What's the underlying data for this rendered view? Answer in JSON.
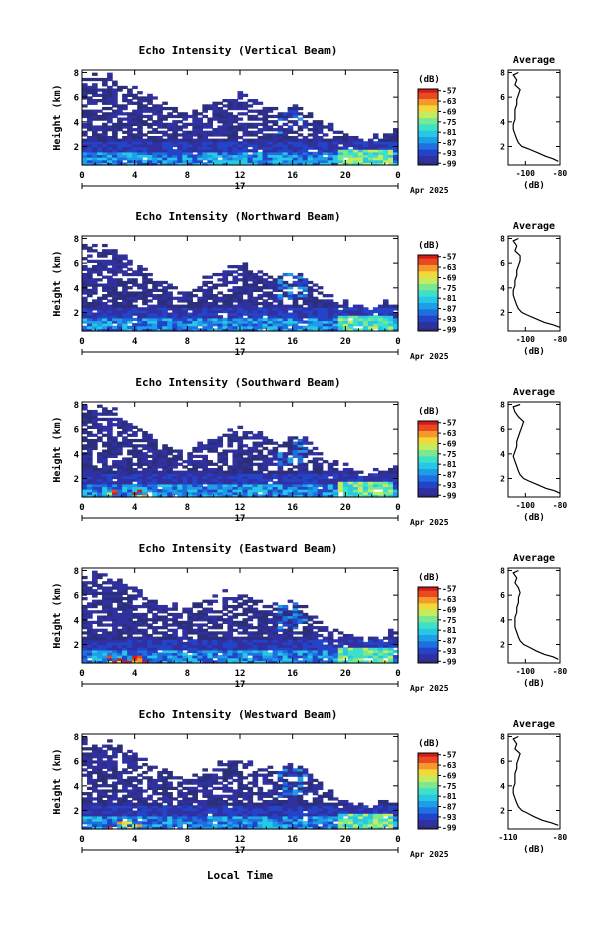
{
  "figure": {
    "xlabel": "Local Time",
    "date_label": "Apr 2025",
    "day_label": "17",
    "cbar_label": "(dB)",
    "avg_title": "Average",
    "avg_xlabel": "(dB)",
    "palette": [
      "#2b2f7a",
      "#3030a0",
      "#2344c8",
      "#1e6fe0",
      "#1f9ee8",
      "#27c7e6",
      "#3fe0c8",
      "#7ae890",
      "#c4ec5e",
      "#f2d83a",
      "#f59a2a",
      "#ea4a22",
      "#d21c1c"
    ]
  },
  "chart_data": [
    {
      "type": "heatmap",
      "title": "Echo Intensity (Vertical Beam)",
      "ylabel": "Height (km)",
      "x_ticks": [
        "0",
        "4",
        "8",
        "12",
        "16",
        "20",
        "0"
      ],
      "y_ticks": [
        "2",
        "4",
        "6",
        "8"
      ],
      "xlim": [
        0,
        24
      ],
      "ylim": [
        0.5,
        8.2
      ],
      "colorbar": {
        "ticks": [
          "-57",
          "-63",
          "-69",
          "-75",
          "-81",
          "-87",
          "-93",
          "-99"
        ],
        "range": [
          -100,
          -56
        ]
      },
      "echo_top_km": [
        7.8,
        7.6,
        7.9,
        7.2,
        6.8,
        6.2,
        5.6,
        5.2,
        4.8,
        5.1,
        5.6,
        6.0,
        6.3,
        5.8,
        5.3,
        5.0,
        5.6,
        5.5,
        4.2,
        3.6,
        3.0,
        2.8,
        2.6,
        3.2,
        3.4
      ],
      "average_profile": {
        "xlim": [
          -110,
          -80
        ],
        "x_ticks": [
          "-100",
          "-80"
        ],
        "y_ticks": [
          "2",
          "4",
          "6",
          "8"
        ],
        "height_km": [
          0.8,
          1.0,
          1.2,
          1.5,
          1.8,
          2.0,
          2.3,
          2.6,
          3.0,
          3.4,
          3.8,
          4.2,
          4.6,
          5.0,
          5.4,
          5.8,
          6.2,
          6.6,
          7.0,
          7.4,
          7.8,
          8.0
        ],
        "db": [
          -81,
          -84,
          -88,
          -93,
          -98,
          -102,
          -104,
          -105,
          -106,
          -107,
          -107,
          -106,
          -106,
          -106,
          -105,
          -105,
          -104,
          -103,
          -106,
          -105,
          -107,
          -104
        ]
      }
    },
    {
      "type": "heatmap",
      "title": "Echo Intensity (Northward Beam)",
      "ylabel": "Height (km)",
      "x_ticks": [
        "0",
        "4",
        "8",
        "12",
        "16",
        "20",
        "0"
      ],
      "y_ticks": [
        "2",
        "4",
        "6",
        "8"
      ],
      "xlim": [
        0,
        24
      ],
      "ylim": [
        0.5,
        8.2
      ],
      "colorbar": {
        "ticks": [
          "-57",
          "-63",
          "-69",
          "-75",
          "-81",
          "-87",
          "-93",
          "-99"
        ],
        "range": [
          -100,
          -56
        ]
      },
      "echo_top_km": [
        7.8,
        7.4,
        7.6,
        6.8,
        6.0,
        5.2,
        4.6,
        4.0,
        3.8,
        4.4,
        5.2,
        5.8,
        6.0,
        5.6,
        5.4,
        5.0,
        5.4,
        5.0,
        4.0,
        3.2,
        2.8,
        2.5,
        2.3,
        2.8,
        3.0
      ],
      "average_profile": {
        "xlim": [
          -110,
          -80
        ],
        "x_ticks": [
          "-100",
          "-80"
        ],
        "y_ticks": [
          "2",
          "4",
          "6",
          "8"
        ],
        "height_km": [
          0.8,
          1.0,
          1.2,
          1.5,
          1.8,
          2.0,
          2.3,
          2.6,
          3.0,
          3.4,
          3.8,
          4.2,
          4.6,
          5.0,
          5.4,
          5.8,
          6.2,
          6.6,
          7.0,
          7.4,
          7.8,
          8.0
        ],
        "db": [
          -80,
          -84,
          -89,
          -94,
          -99,
          -102,
          -104,
          -105,
          -106,
          -107,
          -107,
          -106,
          -106,
          -105,
          -105,
          -104,
          -103,
          -103,
          -106,
          -105,
          -107,
          -104
        ]
      }
    },
    {
      "type": "heatmap",
      "title": "Echo Intensity (Southward Beam)",
      "ylabel": "Height (km)",
      "x_ticks": [
        "0",
        "4",
        "8",
        "12",
        "16",
        "20",
        "0"
      ],
      "y_ticks": [
        "2",
        "4",
        "6",
        "8"
      ],
      "xlim": [
        0,
        24
      ],
      "ylim": [
        0.5,
        8.2
      ],
      "colorbar": {
        "ticks": [
          "-57",
          "-63",
          "-69",
          "-75",
          "-81",
          "-87",
          "-93",
          "-99"
        ],
        "range": [
          -100,
          -56
        ]
      },
      "echo_top_km": [
        7.8,
        7.7,
        7.8,
        7.0,
        6.4,
        5.8,
        5.0,
        4.6,
        4.2,
        4.8,
        5.4,
        5.9,
        6.1,
        5.7,
        5.4,
        5.2,
        5.6,
        5.4,
        4.2,
        3.4,
        3.0,
        2.6,
        2.4,
        3.0,
        3.2
      ],
      "average_profile": {
        "xlim": [
          -110,
          -80
        ],
        "x_ticks": [
          "-100",
          "-80"
        ],
        "y_ticks": [
          "2",
          "4",
          "6",
          "8"
        ],
        "height_km": [
          0.8,
          1.0,
          1.2,
          1.5,
          1.8,
          2.0,
          2.3,
          2.6,
          3.0,
          3.4,
          3.8,
          4.2,
          4.6,
          5.0,
          5.4,
          5.8,
          6.2,
          6.6,
          7.0,
          7.4,
          7.8,
          8.0
        ],
        "db": [
          -80,
          -83,
          -88,
          -93,
          -98,
          -101,
          -103,
          -104,
          -105,
          -106,
          -107,
          -106,
          -105,
          -105,
          -104,
          -103,
          -102,
          -101,
          -104,
          -106,
          -107,
          -103
        ]
      }
    },
    {
      "type": "heatmap",
      "title": "Echo Intensity (Eastward Beam)",
      "ylabel": "Height (km)",
      "x_ticks": [
        "0",
        "4",
        "8",
        "12",
        "16",
        "20",
        "0"
      ],
      "y_ticks": [
        "2",
        "4",
        "6",
        "8"
      ],
      "xlim": [
        0,
        24
      ],
      "ylim": [
        0.5,
        8.2
      ],
      "colorbar": {
        "ticks": [
          "-57",
          "-63",
          "-69",
          "-75",
          "-81",
          "-87",
          "-93",
          "-99"
        ],
        "range": [
          -100,
          -56
        ]
      },
      "echo_top_km": [
        7.8,
        7.8,
        7.6,
        7.0,
        6.6,
        6.0,
        5.4,
        5.2,
        5.0,
        5.4,
        5.8,
        6.2,
        6.0,
        5.6,
        5.4,
        5.2,
        5.6,
        5.2,
        4.0,
        3.4,
        3.0,
        2.7,
        2.5,
        3.0,
        3.2
      ],
      "average_profile": {
        "xlim": [
          -110,
          -80
        ],
        "x_ticks": [
          "-100",
          "-80"
        ],
        "y_ticks": [
          "2",
          "4",
          "6",
          "8"
        ],
        "height_km": [
          0.8,
          1.0,
          1.2,
          1.5,
          1.8,
          2.0,
          2.3,
          2.6,
          3.0,
          3.4,
          3.8,
          4.2,
          4.6,
          5.0,
          5.4,
          5.8,
          6.2,
          6.6,
          7.0,
          7.4,
          7.8,
          8.0
        ],
        "db": [
          -81,
          -84,
          -89,
          -94,
          -98,
          -101,
          -103,
          -104,
          -105,
          -106,
          -106,
          -106,
          -105,
          -105,
          -104,
          -104,
          -103,
          -104,
          -106,
          -105,
          -107,
          -104
        ]
      }
    },
    {
      "type": "heatmap",
      "title": "Echo Intensity (Westward Beam)",
      "ylabel": "Height (km)",
      "x_ticks": [
        "0",
        "4",
        "8",
        "12",
        "16",
        "20",
        "0"
      ],
      "y_ticks": [
        "2",
        "4",
        "6",
        "8"
      ],
      "xlim": [
        0,
        24
      ],
      "ylim": [
        0.5,
        8.2
      ],
      "colorbar": {
        "ticks": [
          "-57",
          "-63",
          "-69",
          "-75",
          "-81",
          "-87",
          "-93",
          "-99"
        ],
        "range": [
          -100,
          -56
        ]
      },
      "echo_top_km": [
        7.8,
        7.6,
        7.8,
        7.2,
        6.6,
        6.0,
        5.4,
        5.0,
        4.6,
        5.0,
        5.6,
        6.0,
        6.2,
        5.8,
        5.4,
        5.2,
        5.8,
        5.6,
        4.4,
        3.6,
        3.0,
        2.6,
        2.4,
        2.8,
        3.0
      ],
      "average_profile": {
        "xlim": [
          -110,
          -80
        ],
        "x_ticks": [
          "-110",
          "-80"
        ],
        "y_ticks": [
          "2",
          "4",
          "6",
          "8"
        ],
        "height_km": [
          0.8,
          1.0,
          1.2,
          1.5,
          1.8,
          2.0,
          2.3,
          2.6,
          3.0,
          3.4,
          3.8,
          4.2,
          4.6,
          5.0,
          5.4,
          5.8,
          6.2,
          6.6,
          7.0,
          7.4,
          7.8,
          8.0
        ],
        "db": [
          -81,
          -85,
          -90,
          -95,
          -99,
          -102,
          -104,
          -105,
          -106,
          -107,
          -107,
          -106,
          -106,
          -106,
          -105,
          -105,
          -104,
          -103,
          -106,
          -105,
          -107,
          -104
        ]
      }
    }
  ]
}
